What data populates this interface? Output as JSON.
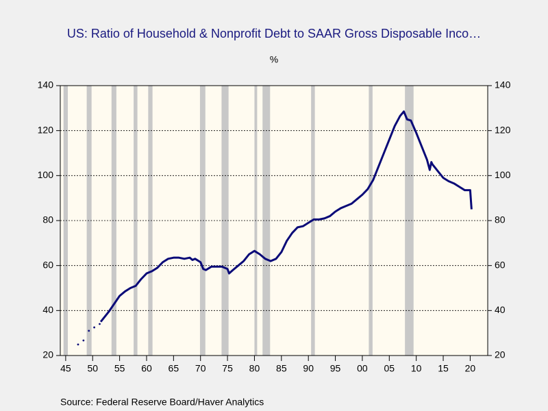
{
  "chart_data": {
    "type": "line",
    "title": "US: Ratio of Household & Nonprofit Debt to SAAR Gross Disposable Inco…",
    "subtitle": "%",
    "source": "Source:  Federal Reserve Board/Haver Analytics",
    "xlim": [
      1944,
      2023.25
    ],
    "ylim": [
      20,
      140
    ],
    "yticks": [
      20,
      40,
      60,
      80,
      100,
      120,
      140
    ],
    "xticks": [
      {
        "value": 1945,
        "label": "45"
      },
      {
        "value": 1950,
        "label": "50"
      },
      {
        "value": 1955,
        "label": "55"
      },
      {
        "value": 1960,
        "label": "60"
      },
      {
        "value": 1965,
        "label": "65"
      },
      {
        "value": 1970,
        "label": "70"
      },
      {
        "value": 1975,
        "label": "75"
      },
      {
        "value": 1980,
        "label": "80"
      },
      {
        "value": 1985,
        "label": "85"
      },
      {
        "value": 1990,
        "label": "90"
      },
      {
        "value": 1995,
        "label": "95"
      },
      {
        "value": 2000,
        "label": "00"
      },
      {
        "value": 2005,
        "label": "05"
      },
      {
        "value": 2010,
        "label": "10"
      },
      {
        "value": 2015,
        "label": "15"
      },
      {
        "value": 2020,
        "label": "20"
      }
    ],
    "grid": true,
    "recessions": [
      [
        1944.6,
        1945.4
      ],
      [
        1948.9,
        1949.8
      ],
      [
        1953.5,
        1954.4
      ],
      [
        1957.6,
        1958.3
      ],
      [
        1960.3,
        1961.1
      ],
      [
        1969.9,
        1970.9
      ],
      [
        1973.9,
        1975.2
      ],
      [
        1980.0,
        1980.5
      ],
      [
        1981.5,
        1982.9
      ],
      [
        1990.5,
        1991.2
      ],
      [
        2001.2,
        2001.9
      ],
      [
        2007.9,
        2009.5
      ]
    ],
    "recession_color": "#c8c8c8",
    "series": [
      {
        "color": "#0a0a78",
        "style": "dots",
        "x": [
          1947.3,
          1948.3,
          1949.3,
          1950.3,
          1951.3
        ],
        "values": [
          24.9,
          26.7,
          31,
          32.5,
          34
        ]
      },
      {
        "color": "#0a0a78",
        "style": "line",
        "x": [
          1951.5,
          1952,
          1953,
          1954,
          1955,
          1956,
          1957,
          1958,
          1959,
          1960,
          1961,
          1962,
          1963,
          1964,
          1965,
          1966,
          1967,
          1968,
          1968.5,
          1969,
          1970,
          1970.5,
          1971,
          1972,
          1973,
          1974,
          1975,
          1975.3,
          1976,
          1977,
          1978,
          1979,
          1980,
          1981,
          1982,
          1983,
          1984,
          1985,
          1986,
          1987,
          1988,
          1989,
          1990,
          1991,
          1992,
          1993,
          1994,
          1995,
          1996,
          1997,
          1998,
          1999,
          2000,
          2001,
          2002,
          2003,
          2004,
          2005,
          2006,
          2007,
          2007.7,
          2008.3,
          2009,
          2010,
          2011,
          2012,
          2012.5,
          2012.8,
          2013,
          2014,
          2015,
          2016,
          2017,
          2018,
          2019,
          2020,
          2020.25
        ],
        "values": [
          35,
          36.5,
          39.5,
          43,
          46.5,
          48.5,
          50,
          51,
          54,
          56.5,
          57.5,
          59,
          61.5,
          63,
          63.5,
          63.5,
          63,
          63.5,
          62.5,
          63,
          61.5,
          58.5,
          58,
          59.5,
          59.5,
          59.5,
          58.5,
          56.5,
          58,
          60,
          62,
          65,
          66.5,
          65,
          63,
          62,
          63,
          66,
          71,
          74.5,
          77,
          77.5,
          79,
          80.5,
          80.5,
          81,
          82,
          84,
          85.5,
          86.5,
          87.5,
          89.5,
          91.5,
          94,
          98,
          104,
          110,
          116,
          122,
          126.5,
          128.5,
          125,
          124.5,
          119,
          113,
          107,
          102.5,
          106,
          105,
          102,
          99,
          97.5,
          96.5,
          95,
          93.5,
          93.5,
          85
        ]
      }
    ]
  }
}
